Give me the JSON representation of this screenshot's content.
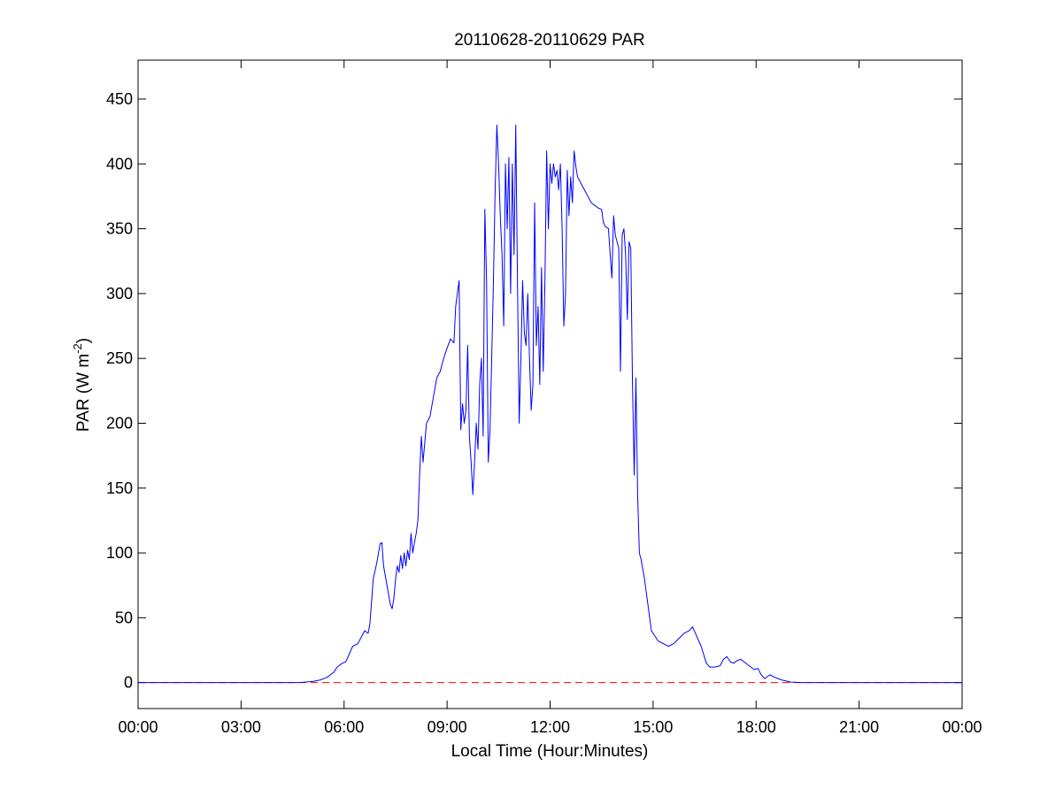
{
  "chart_data": {
    "type": "line",
    "title": "20110628-20110629 PAR",
    "xlabel": "Local Time (Hour:Minutes)",
    "ylabel": {
      "main": "PAR (W m",
      "superscript": "-2",
      "suffix": ")"
    },
    "xlim": [
      0,
      24
    ],
    "ylim": [
      -20,
      480
    ],
    "x_ticks": [
      {
        "value": 0,
        "label": "00:00"
      },
      {
        "value": 3,
        "label": "03:00"
      },
      {
        "value": 6,
        "label": "06:00"
      },
      {
        "value": 9,
        "label": "09:00"
      },
      {
        "value": 12,
        "label": "12:00"
      },
      {
        "value": 15,
        "label": "15:00"
      },
      {
        "value": 18,
        "label": "18:00"
      },
      {
        "value": 21,
        "label": "21:00"
      },
      {
        "value": 24,
        "label": "00:00"
      }
    ],
    "y_ticks": [
      {
        "value": 0,
        "label": "0"
      },
      {
        "value": 50,
        "label": "50"
      },
      {
        "value": 100,
        "label": "100"
      },
      {
        "value": 150,
        "label": "150"
      },
      {
        "value": 200,
        "label": "200"
      },
      {
        "value": 250,
        "label": "250"
      },
      {
        "value": 300,
        "label": "300"
      },
      {
        "value": 350,
        "label": "350"
      },
      {
        "value": 400,
        "label": "400"
      },
      {
        "value": 450,
        "label": "450"
      }
    ],
    "grid": false,
    "legend": "none",
    "series": [
      {
        "color": "#0000ff",
        "style": "solid",
        "x_unit": "hours",
        "points": [
          [
            0,
            0
          ],
          [
            4.7,
            0
          ],
          [
            4.9,
            0.5
          ],
          [
            5.1,
            1
          ],
          [
            5.3,
            2
          ],
          [
            5.5,
            4
          ],
          [
            5.7,
            8
          ],
          [
            5.8,
            12
          ],
          [
            5.95,
            15
          ],
          [
            6.05,
            16
          ],
          [
            6.15,
            22
          ],
          [
            6.25,
            28
          ],
          [
            6.4,
            30
          ],
          [
            6.5,
            35
          ],
          [
            6.6,
            40
          ],
          [
            6.7,
            38
          ],
          [
            6.75,
            45
          ],
          [
            6.8,
            62
          ],
          [
            6.85,
            80
          ],
          [
            6.95,
            92
          ],
          [
            7.05,
            107
          ],
          [
            7.1,
            108
          ],
          [
            7.15,
            90
          ],
          [
            7.25,
            75
          ],
          [
            7.35,
            60
          ],
          [
            7.4,
            57
          ],
          [
            7.45,
            65
          ],
          [
            7.5,
            80
          ],
          [
            7.55,
            90
          ],
          [
            7.6,
            85
          ],
          [
            7.65,
            98
          ],
          [
            7.7,
            88
          ],
          [
            7.75,
            100
          ],
          [
            7.8,
            90
          ],
          [
            7.85,
            102
          ],
          [
            7.9,
            95
          ],
          [
            7.95,
            115
          ],
          [
            8.0,
            100
          ],
          [
            8.05,
            108
          ],
          [
            8.1,
            115
          ],
          [
            8.15,
            125
          ],
          [
            8.2,
            160
          ],
          [
            8.25,
            190
          ],
          [
            8.3,
            170
          ],
          [
            8.35,
            185
          ],
          [
            8.4,
            200
          ],
          [
            8.5,
            205
          ],
          [
            8.6,
            220
          ],
          [
            8.7,
            235
          ],
          [
            8.8,
            240
          ],
          [
            8.9,
            250
          ],
          [
            9.0,
            258
          ],
          [
            9.1,
            265
          ],
          [
            9.2,
            262
          ],
          [
            9.25,
            290
          ],
          [
            9.35,
            310
          ],
          [
            9.4,
            195
          ],
          [
            9.45,
            215
          ],
          [
            9.5,
            200
          ],
          [
            9.55,
            210
          ],
          [
            9.6,
            260
          ],
          [
            9.65,
            190
          ],
          [
            9.7,
            170
          ],
          [
            9.75,
            145
          ],
          [
            9.8,
            170
          ],
          [
            9.85,
            200
          ],
          [
            9.9,
            180
          ],
          [
            9.95,
            230
          ],
          [
            10.0,
            250
          ],
          [
            10.05,
            190
          ],
          [
            10.1,
            365
          ],
          [
            10.15,
            310
          ],
          [
            10.2,
            170
          ],
          [
            10.25,
            195
          ],
          [
            10.3,
            250
          ],
          [
            10.35,
            310
          ],
          [
            10.4,
            380
          ],
          [
            10.45,
            430
          ],
          [
            10.5,
            400
          ],
          [
            10.55,
            360
          ],
          [
            10.6,
            330
          ],
          [
            10.65,
            275
          ],
          [
            10.7,
            400
          ],
          [
            10.75,
            350
          ],
          [
            10.8,
            405
          ],
          [
            10.85,
            300
          ],
          [
            10.9,
            400
          ],
          [
            10.95,
            330
          ],
          [
            11.0,
            430
          ],
          [
            11.05,
            310
          ],
          [
            11.1,
            200
          ],
          [
            11.15,
            250
          ],
          [
            11.2,
            310
          ],
          [
            11.25,
            270
          ],
          [
            11.3,
            260
          ],
          [
            11.35,
            300
          ],
          [
            11.4,
            250
          ],
          [
            11.45,
            210
          ],
          [
            11.5,
            230
          ],
          [
            11.55,
            370
          ],
          [
            11.6,
            260
          ],
          [
            11.65,
            290
          ],
          [
            11.7,
            230
          ],
          [
            11.75,
            320
          ],
          [
            11.8,
            240
          ],
          [
            11.85,
            310
          ],
          [
            11.9,
            410
          ],
          [
            11.95,
            350
          ],
          [
            12.0,
            400
          ],
          [
            12.05,
            385
          ],
          [
            12.1,
            400
          ],
          [
            12.15,
            390
          ],
          [
            12.2,
            395
          ],
          [
            12.25,
            380
          ],
          [
            12.3,
            400
          ],
          [
            12.35,
            350
          ],
          [
            12.4,
            275
          ],
          [
            12.45,
            300
          ],
          [
            12.5,
            395
          ],
          [
            12.55,
            360
          ],
          [
            12.6,
            390
          ],
          [
            12.65,
            370
          ],
          [
            12.7,
            410
          ],
          [
            12.75,
            398
          ],
          [
            12.8,
            390
          ],
          [
            12.9,
            385
          ],
          [
            13.0,
            380
          ],
          [
            13.1,
            375
          ],
          [
            13.2,
            370
          ],
          [
            13.3,
            368
          ],
          [
            13.4,
            366
          ],
          [
            13.5,
            365
          ],
          [
            13.55,
            355
          ],
          [
            13.6,
            352
          ],
          [
            13.7,
            350
          ],
          [
            13.75,
            330
          ],
          [
            13.8,
            312
          ],
          [
            13.85,
            360
          ],
          [
            13.9,
            345
          ],
          [
            13.95,
            340
          ],
          [
            14.0,
            335
          ],
          [
            14.05,
            240
          ],
          [
            14.1,
            345
          ],
          [
            14.15,
            350
          ],
          [
            14.2,
            330
          ],
          [
            14.25,
            280
          ],
          [
            14.3,
            340
          ],
          [
            14.35,
            335
          ],
          [
            14.4,
            230
          ],
          [
            14.45,
            160
          ],
          [
            14.5,
            235
          ],
          [
            14.55,
            145
          ],
          [
            14.6,
            100
          ],
          [
            14.65,
            95
          ],
          [
            14.75,
            80
          ],
          [
            14.85,
            60
          ],
          [
            14.95,
            40
          ],
          [
            15.05,
            36
          ],
          [
            15.15,
            32
          ],
          [
            15.3,
            30
          ],
          [
            15.45,
            28
          ],
          [
            15.6,
            30
          ],
          [
            15.75,
            34
          ],
          [
            15.9,
            38
          ],
          [
            16.05,
            40
          ],
          [
            16.15,
            43
          ],
          [
            16.25,
            37
          ],
          [
            16.4,
            28
          ],
          [
            16.55,
            15
          ],
          [
            16.65,
            12
          ],
          [
            16.8,
            12
          ],
          [
            16.95,
            13
          ],
          [
            17.05,
            18
          ],
          [
            17.15,
            20
          ],
          [
            17.25,
            16
          ],
          [
            17.35,
            15
          ],
          [
            17.45,
            17
          ],
          [
            17.55,
            18
          ],
          [
            17.65,
            16
          ],
          [
            17.8,
            13
          ],
          [
            17.95,
            10
          ],
          [
            18.05,
            11
          ],
          [
            18.15,
            6
          ],
          [
            18.25,
            3
          ],
          [
            18.4,
            6
          ],
          [
            18.55,
            4
          ],
          [
            18.75,
            2
          ],
          [
            19.0,
            0.5
          ],
          [
            19.3,
            0
          ],
          [
            24,
            0
          ]
        ]
      },
      {
        "color": "#ff0000",
        "style": "dashed",
        "points": [
          [
            0,
            0
          ],
          [
            24,
            0
          ]
        ]
      }
    ]
  }
}
